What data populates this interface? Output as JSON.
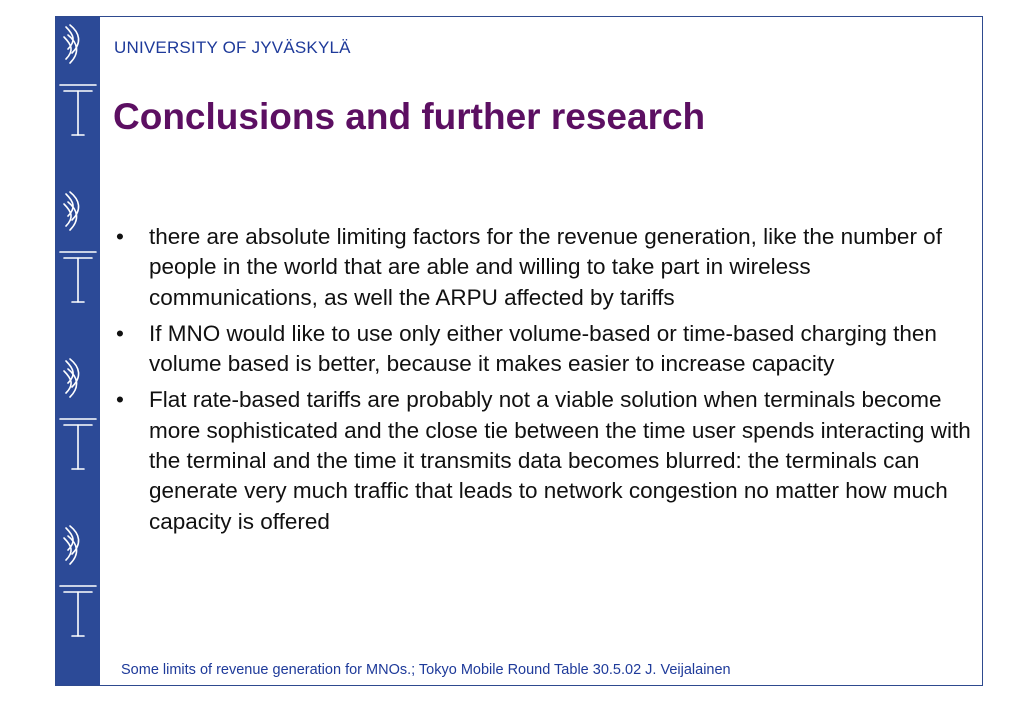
{
  "header": {
    "university": "UNIVERSITY OF JYVÄSKYLÄ"
  },
  "slide": {
    "title": "Conclusions and further research",
    "bullet_marker": "•",
    "bullets": [
      "there are absolute limiting factors for the revenue generation, like the number of people in the world that are able and willing to take part in wireless communications, as well the ARPU affected by tariffs",
      "If  MNO would like to use only either volume-based or time-based charging then volume based is better, because it makes easier to increase capacity",
      "Flat rate-based tariffs are probably not a viable solution when terminals become more sophisticated and the close tie between the time user spends interacting with the terminal and the time it transmits data becomes blurred: the terminals can generate very much traffic that leads to network congestion no matter how much capacity is offered"
    ]
  },
  "footer": {
    "text": "Some limits of revenue generation for MNOs.; Tokyo Mobile Round Table 30.5.02 J. Veijalainen"
  },
  "colors": {
    "sidebar": "#2c4a97",
    "title": "#5c0f62",
    "accent_text": "#1e3a9a",
    "body_text": "#111111"
  },
  "icons": {
    "sidebar_emblem": "university-torch-emblem"
  }
}
